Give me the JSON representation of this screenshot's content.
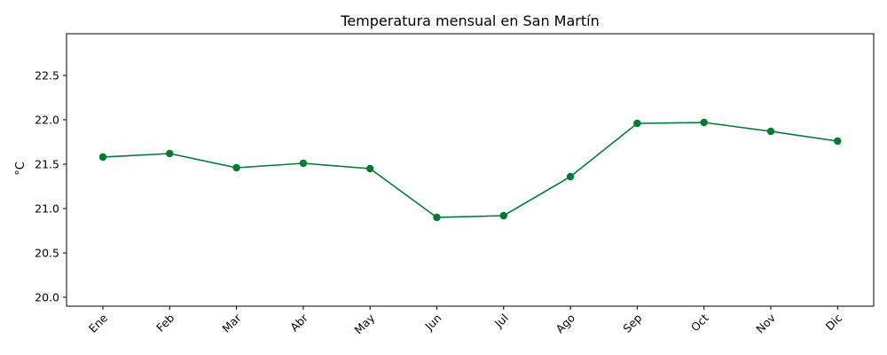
{
  "chart_data": {
    "type": "line",
    "title": "Temperatura mensual en San Martín",
    "xlabel": "",
    "ylabel": "°C",
    "categories": [
      "Ene",
      "Feb",
      "Mar",
      "Abr",
      "May",
      "Jun",
      "Jul",
      "Ago",
      "Sep",
      "Oct",
      "Nov",
      "Dic"
    ],
    "series": [
      {
        "values": [
          21.58,
          21.62,
          21.46,
          21.51,
          21.45,
          20.9,
          20.92,
          21.36,
          21.96,
          21.97,
          21.87,
          21.76
        ]
      }
    ],
    "ylim": [
      19.9,
      22.97
    ],
    "yticks": [
      20.0,
      20.5,
      21.0,
      21.5,
      22.0,
      22.5
    ],
    "ytick_labels": [
      "20.0",
      "20.5",
      "21.0",
      "21.5",
      "22.0",
      "22.5"
    ],
    "grid": false,
    "legend": "none",
    "color": "#007a33",
    "marker": "circle"
  }
}
